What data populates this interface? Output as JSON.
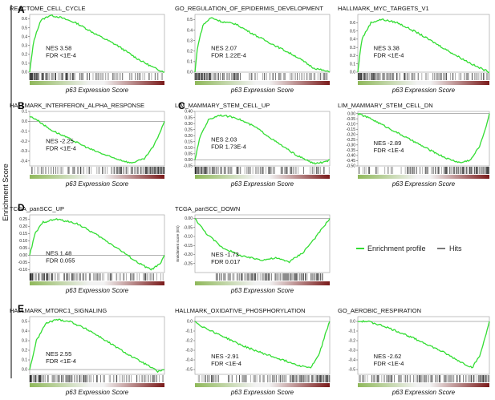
{
  "figure": {
    "y_axis_label": "Enrichment Score",
    "panel_labels": [
      "A",
      "B",
      "C",
      "D",
      "E"
    ],
    "legend": {
      "profile_label": "Enrichment profile",
      "hits_label": "Hits",
      "profile_color": "#33dd33",
      "hits_color": "#222222"
    }
  },
  "chart_data": [
    {
      "type": "line",
      "title": "REACTOME_CELL_CYCLE",
      "xlabel": "p63 Expression Score",
      "nes": "NES 3.58",
      "fdr": "FDR <1E-4",
      "ylim": [
        0,
        0.65
      ],
      "yticks": [
        0,
        0.1,
        0.2,
        0.3,
        0.4,
        0.5,
        0.6
      ],
      "yticklabels": [
        "0.0",
        "0.1",
        "0.2",
        "0.3",
        "0.4",
        "0.5",
        "0.6"
      ],
      "shape": [
        [
          0,
          0
        ],
        [
          0.03,
          0.35
        ],
        [
          0.08,
          0.58
        ],
        [
          0.15,
          0.64
        ],
        [
          0.22,
          0.62
        ],
        [
          0.35,
          0.55
        ],
        [
          0.5,
          0.42
        ],
        [
          0.65,
          0.3
        ],
        [
          0.8,
          0.15
        ],
        [
          0.92,
          0.05
        ],
        [
          1,
          0
        ]
      ],
      "hits": "front",
      "gene_set": "REACTOME_CELL_CYCLE"
    },
    {
      "type": "line",
      "title": "GO_REGULATION_OF_EPIDERMIS_DEVELOPMENT",
      "xlabel": "p63 Expression Score",
      "nes": "NES 2.07",
      "fdr": "FDR 1.22E-4",
      "ylim": [
        0,
        0.55
      ],
      "yticks": [
        0,
        0.1,
        0.2,
        0.3,
        0.4,
        0.5
      ],
      "yticklabels": [
        "0.0",
        "0.1",
        "0.2",
        "0.3",
        "0.4",
        "0.5"
      ],
      "shape": [
        [
          0,
          0
        ],
        [
          0.02,
          0.25
        ],
        [
          0.06,
          0.45
        ],
        [
          0.12,
          0.52
        ],
        [
          0.2,
          0.48
        ],
        [
          0.3,
          0.46
        ],
        [
          0.45,
          0.35
        ],
        [
          0.6,
          0.25
        ],
        [
          0.75,
          0.15
        ],
        [
          0.88,
          0.04
        ],
        [
          1,
          0
        ]
      ],
      "hits": "front",
      "gene_set": "GO_REGULATION_OF_EPIDERMIS_DEVELOPMENT"
    },
    {
      "type": "line",
      "title": "HALLMARK_MYC_TARGETS_V1",
      "xlabel": "p63 Expression Score",
      "nes": "NES 3.38",
      "fdr": "FDR <1E-4",
      "ylim": [
        0,
        0.7
      ],
      "yticks": [
        0,
        0.1,
        0.2,
        0.3,
        0.4,
        0.5,
        0.6
      ],
      "yticklabels": [
        "0.0",
        "0.1",
        "0.2",
        "0.3",
        "0.4",
        "0.5",
        "0.6"
      ],
      "shape": [
        [
          0,
          0
        ],
        [
          0.03,
          0.4
        ],
        [
          0.1,
          0.6
        ],
        [
          0.18,
          0.64
        ],
        [
          0.3,
          0.6
        ],
        [
          0.45,
          0.48
        ],
        [
          0.6,
          0.34
        ],
        [
          0.75,
          0.2
        ],
        [
          0.9,
          0.07
        ],
        [
          1,
          0
        ]
      ],
      "hits": "front",
      "gene_set": "HALLMARK_MYC_TARGETS_V1"
    },
    {
      "type": "line",
      "title": "HALLMARK_INTERFERON_ALPHA_RESPONSE",
      "xlabel": "p63 Expression Score",
      "nes": "NES -2.25",
      "fdr": "FDR <1E-4",
      "ylim": [
        -0.45,
        0.1
      ],
      "yticks": [
        0.1,
        0,
        -0.1,
        -0.2,
        -0.3,
        -0.4
      ],
      "yticklabels": [
        "0.1",
        "0.0",
        "-0.1",
        "-0.2",
        "-0.3",
        "-0.4"
      ],
      "shape": [
        [
          0,
          0.05
        ],
        [
          0.05,
          0.02
        ],
        [
          0.15,
          -0.08
        ],
        [
          0.3,
          -0.18
        ],
        [
          0.45,
          -0.28
        ],
        [
          0.6,
          -0.36
        ],
        [
          0.75,
          -0.42
        ],
        [
          0.85,
          -0.38
        ],
        [
          0.92,
          -0.25
        ],
        [
          0.97,
          -0.1
        ],
        [
          1,
          0
        ]
      ],
      "hits": "back",
      "gene_set": "HALLMARK_INTERFERON_ALPHA_RESPONSE"
    },
    {
      "type": "line",
      "title": "LIM_MAMMARY_STEM_CELL_UP",
      "xlabel": "p63 Expression Score",
      "nes": "NES 2.03",
      "fdr": "FDR 1.73E-4",
      "ylim": [
        -0.05,
        0.4
      ],
      "yticks": [
        0.4,
        0.35,
        0.3,
        0.25,
        0.2,
        0.15,
        0.1,
        0.05,
        0,
        -0.05
      ],
      "yticklabels": [
        "0.40",
        "0.35",
        "0.30",
        "0.25",
        "0.20",
        "0.15",
        "0.10",
        "0.05",
        "0.00",
        "-0.05"
      ],
      "shape": [
        [
          0,
          0
        ],
        [
          0.04,
          0.2
        ],
        [
          0.1,
          0.33
        ],
        [
          0.18,
          0.37
        ],
        [
          0.3,
          0.35
        ],
        [
          0.45,
          0.27
        ],
        [
          0.6,
          0.15
        ],
        [
          0.75,
          0.04
        ],
        [
          0.88,
          -0.03
        ],
        [
          0.96,
          -0.02
        ],
        [
          1,
          0
        ]
      ],
      "hits": "front",
      "gene_set": "LIM_MAMMARY_STEM_CELL_UP"
    },
    {
      "type": "line",
      "title": "LIM_MAMMARY_STEM_CELL_DN",
      "xlabel": "p63 Expression Score",
      "nes": "NES -2.89",
      "fdr": "FDR <1E-4",
      "ylim": [
        -0.5,
        0.02
      ],
      "yticks": [
        0,
        -0.05,
        -0.1,
        -0.15,
        -0.2,
        -0.25,
        -0.3,
        -0.35,
        -0.4,
        -0.45,
        -0.5
      ],
      "yticklabels": [
        "0.00",
        "-0.05",
        "-0.10",
        "-0.15",
        "-0.20",
        "-0.25",
        "-0.30",
        "-0.35",
        "-0.40",
        "-0.45",
        "-0.50"
      ],
      "shape": [
        [
          0,
          0
        ],
        [
          0.1,
          -0.05
        ],
        [
          0.25,
          -0.15
        ],
        [
          0.4,
          -0.25
        ],
        [
          0.55,
          -0.35
        ],
        [
          0.68,
          -0.43
        ],
        [
          0.78,
          -0.47
        ],
        [
          0.86,
          -0.44
        ],
        [
          0.93,
          -0.3
        ],
        [
          0.98,
          -0.1
        ],
        [
          1,
          0
        ]
      ],
      "hits": "back",
      "gene_set": "LIM_MAMMARY_STEM_CELL_DN"
    },
    {
      "type": "line",
      "title": "TCGA_panSCC_UP",
      "xlabel": "p63 Expression Score",
      "nes": "NES 1.48",
      "fdr": "FDR 0.055",
      "ylim": [
        -0.12,
        0.28
      ],
      "yticks": [
        0.25,
        0.2,
        0.15,
        0.1,
        0.05,
        0,
        -0.05,
        -0.1
      ],
      "yticklabels": [
        "0.25",
        "0.20",
        "0.15",
        "0.10",
        "0.05",
        "0.00",
        "-0.05",
        "-0.10"
      ],
      "shape": [
        [
          0,
          0
        ],
        [
          0.04,
          0.15
        ],
        [
          0.1,
          0.23
        ],
        [
          0.2,
          0.25
        ],
        [
          0.35,
          0.22
        ],
        [
          0.5,
          0.14
        ],
        [
          0.65,
          0.05
        ],
        [
          0.8,
          -0.05
        ],
        [
          0.9,
          -0.1
        ],
        [
          0.97,
          -0.06
        ],
        [
          1,
          0
        ]
      ],
      "hits": "front",
      "gene_set": "TCGA_panSCC_UP"
    },
    {
      "type": "line",
      "title": "TCGA_panSCC_DOWN",
      "xlabel": "p63 Expression Score",
      "ylabel": "Enrichment score (ES)",
      "nes": "NES -1.73",
      "fdr": "FDR 0.017",
      "ylim": [
        -0.3,
        0.02
      ],
      "yticks": [
        0,
        -0.05,
        -0.1,
        -0.15,
        -0.2,
        -0.25
      ],
      "yticklabels": [
        "0.00",
        "-0.05",
        "-0.10",
        "-0.15",
        "-0.20",
        "-0.25"
      ],
      "shape": [
        [
          0,
          0
        ],
        [
          0.08,
          -0.08
        ],
        [
          0.2,
          -0.16
        ],
        [
          0.35,
          -0.21
        ],
        [
          0.5,
          -0.23
        ],
        [
          0.6,
          -0.22
        ],
        [
          0.7,
          -0.24
        ],
        [
          0.8,
          -0.19
        ],
        [
          0.9,
          -0.1
        ],
        [
          0.97,
          -0.03
        ],
        [
          1,
          0
        ]
      ],
      "hits": "mid",
      "gene_set": "TCGA_panSCC_DOWN"
    },
    {
      "type": "line",
      "title": "HALLMARK_MTORC1_SIGNALING",
      "xlabel": "p63 Expression Score",
      "nes": "NES 2.55",
      "fdr": "FDR <1E-4",
      "ylim": [
        -0.05,
        0.55
      ],
      "yticks": [
        0.5,
        0.4,
        0.3,
        0.2,
        0.1,
        0
      ],
      "yticklabels": [
        "0.5",
        "0.4",
        "0.3",
        "0.2",
        "0.1",
        "0.0"
      ],
      "shape": [
        [
          0,
          0
        ],
        [
          0.05,
          0.3
        ],
        [
          0.12,
          0.48
        ],
        [
          0.2,
          0.52
        ],
        [
          0.3,
          0.5
        ],
        [
          0.45,
          0.4
        ],
        [
          0.6,
          0.27
        ],
        [
          0.75,
          0.14
        ],
        [
          0.88,
          0.04
        ],
        [
          0.95,
          -0.02
        ],
        [
          1,
          0
        ]
      ],
      "hits": "front",
      "gene_set": "HALLMARK_MTORC1_SIGNALING"
    },
    {
      "type": "line",
      "title": "HALLMARK_OXIDATIVE_PHOSPHORYLATION",
      "xlabel": "p63 Expression Score",
      "nes": "NES -2.91",
      "fdr": "FDR <1E-4",
      "ylim": [
        -0.55,
        0.05
      ],
      "yticks": [
        0,
        -0.1,
        -0.2,
        -0.3,
        -0.4,
        -0.5
      ],
      "yticklabels": [
        "0.0",
        "-0.1",
        "-0.2",
        "-0.3",
        "-0.4",
        "-0.5"
      ],
      "shape": [
        [
          0,
          0
        ],
        [
          0.05,
          -0.05
        ],
        [
          0.2,
          -0.15
        ],
        [
          0.35,
          -0.25
        ],
        [
          0.5,
          -0.33
        ],
        [
          0.65,
          -0.4
        ],
        [
          0.78,
          -0.46
        ],
        [
          0.86,
          -0.48
        ],
        [
          0.92,
          -0.35
        ],
        [
          0.97,
          -0.12
        ],
        [
          1,
          0
        ]
      ],
      "hits": "back",
      "gene_set": "HALLMARK_OXIDATIVE_PHOSPHORYLATION"
    },
    {
      "type": "line",
      "title": "GO_AEROBIC_RESPIRATION",
      "xlabel": "p63 Expression Score",
      "nes": "NES -2.62",
      "fdr": "FDR <1E-4",
      "ylim": [
        -0.55,
        0.05
      ],
      "yticks": [
        0,
        -0.1,
        -0.2,
        -0.3,
        -0.4,
        -0.5
      ],
      "yticklabels": [
        "0.0",
        "-0.1",
        "-0.2",
        "-0.3",
        "-0.4",
        "-0.5"
      ],
      "shape": [
        [
          0,
          0
        ],
        [
          0.08,
          0
        ],
        [
          0.2,
          -0.05
        ],
        [
          0.35,
          -0.13
        ],
        [
          0.5,
          -0.22
        ],
        [
          0.65,
          -0.32
        ],
        [
          0.78,
          -0.42
        ],
        [
          0.87,
          -0.48
        ],
        [
          0.93,
          -0.35
        ],
        [
          0.98,
          -0.1
        ],
        [
          1,
          0
        ]
      ],
      "hits": "back",
      "gene_set": "GO_AEROBIC_RESPIRATION"
    }
  ]
}
